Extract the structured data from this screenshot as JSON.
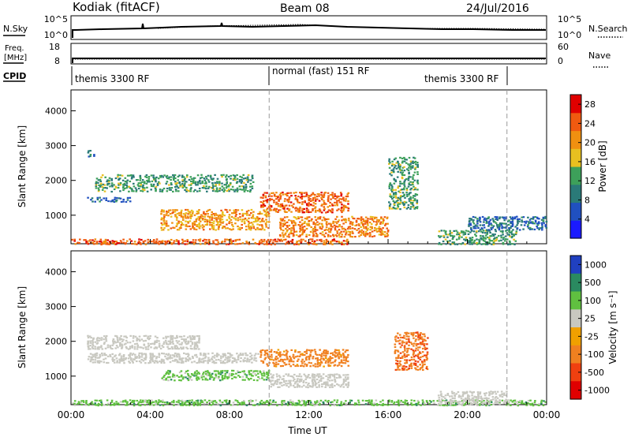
{
  "header": {
    "station": "Kodiak (fitACF)",
    "beam": "Beam 08",
    "date": "24/Jul/2016"
  },
  "top_panels": {
    "nsky": {
      "left_label": "N.Sky",
      "right_label": "N.Search",
      "left_ticks": [
        "10^5",
        "10^0"
      ],
      "right_ticks": [
        "10^5",
        "10^0"
      ]
    },
    "freq": {
      "left_label_1": "Freq.",
      "left_label_2": "[MHz]",
      "right_label": "Nave",
      "left_ticks": [
        "18",
        "8"
      ],
      "right_ticks": [
        "60",
        "0"
      ]
    },
    "cpid": {
      "label": "CPID",
      "segments": [
        "themis 3300 RF",
        "normal (fast) 151 RF",
        "themis 3300 RF"
      ]
    }
  },
  "chart_data": [
    {
      "type": "heatmap",
      "title": "",
      "ylabel": "Slant Range [km]",
      "xlabel": "",
      "xlim": [
        "00:00",
        "24:00"
      ],
      "ylim": [
        180,
        4600
      ],
      "yticks": [
        "1000",
        "2000",
        "3000",
        "4000"
      ],
      "colorbar": {
        "label": "Power [dB]",
        "range": [
          0,
          30
        ],
        "ticks": [
          "4",
          "8",
          "12",
          "16",
          "20",
          "24",
          "28"
        ],
        "colors": [
          "#1a1aff",
          "#2050c0",
          "#2a7a78",
          "#3da05a",
          "#e8c020",
          "#f09010",
          "#f05a10",
          "#e00000"
        ]
      },
      "dashed_vertical_lines_ut": [
        10.0,
        22.0
      ],
      "echo_regions": [
        {
          "t": [
            0.8,
            1.2
          ],
          "r": [
            2700,
            2900
          ],
          "level": 8
        },
        {
          "t": [
            1.2,
            9.2
          ],
          "r": [
            1700,
            2200
          ],
          "level": 12
        },
        {
          "t": [
            0.8,
            3.0
          ],
          "r": [
            1400,
            1550
          ],
          "level": 8
        },
        {
          "t": [
            4.5,
            10.0
          ],
          "r": [
            600,
            1200
          ],
          "level": 20
        },
        {
          "t": [
            0.0,
            14.0
          ],
          "r": [
            180,
            350
          ],
          "level": 24
        },
        {
          "t": [
            9.5,
            14.0
          ],
          "r": [
            1100,
            1700
          ],
          "level": 24
        },
        {
          "t": [
            10.5,
            16.0
          ],
          "r": [
            400,
            1000
          ],
          "level": 22
        },
        {
          "t": [
            16.0,
            17.5
          ],
          "r": [
            1200,
            2700
          ],
          "level": 12
        },
        {
          "t": [
            18.5,
            22.5
          ],
          "r": [
            180,
            600
          ],
          "level": 12
        },
        {
          "t": [
            20.0,
            24.0
          ],
          "r": [
            600,
            1000
          ],
          "level": 8
        }
      ]
    },
    {
      "type": "heatmap",
      "title": "",
      "ylabel": "Slant Range [km]",
      "xlabel": "Time UT",
      "xlim": [
        "00:00",
        "24:00"
      ],
      "xticks": [
        "00:00",
        "04:00",
        "08:00",
        "12:00",
        "16:00",
        "20:00",
        "00:00"
      ],
      "ylim": [
        180,
        4600
      ],
      "yticks": [
        "1000",
        "2000",
        "3000",
        "4000"
      ],
      "colorbar": {
        "label": "Velocity [m s⁻¹]",
        "ticks": [
          "1000",
          "500",
          "100",
          "25",
          "-25",
          "-100",
          "-500",
          "-1000"
        ],
        "colors": [
          "#2040c0",
          "#2a8a60",
          "#60c040",
          "#c8c8c0",
          "#f0a000",
          "#f08020",
          "#f04010",
          "#e00000"
        ]
      },
      "dashed_vertical_lines_ut": [
        10.0,
        22.0
      ],
      "echo_regions": [
        {
          "t": [
            0.8,
            6.5
          ],
          "r": [
            1800,
            2200
          ],
          "level": 0
        },
        {
          "t": [
            0.8,
            9.5
          ],
          "r": [
            1400,
            1700
          ],
          "level": 0
        },
        {
          "t": [
            9.5,
            14.0
          ],
          "r": [
            1300,
            1800
          ],
          "level": -200
        },
        {
          "t": [
            4.5,
            10.0
          ],
          "r": [
            900,
            1200
          ],
          "level": 60
        },
        {
          "t": [
            10.0,
            14.0
          ],
          "r": [
            700,
            1100
          ],
          "level": 0
        },
        {
          "t": [
            0.0,
            24.0
          ],
          "r": [
            180,
            350
          ],
          "level": 60
        },
        {
          "t": [
            16.3,
            18.0
          ],
          "r": [
            1200,
            2300
          ],
          "level": -400
        },
        {
          "t": [
            18.5,
            22.0
          ],
          "r": [
            200,
            600
          ],
          "level": 0
        }
      ]
    }
  ]
}
